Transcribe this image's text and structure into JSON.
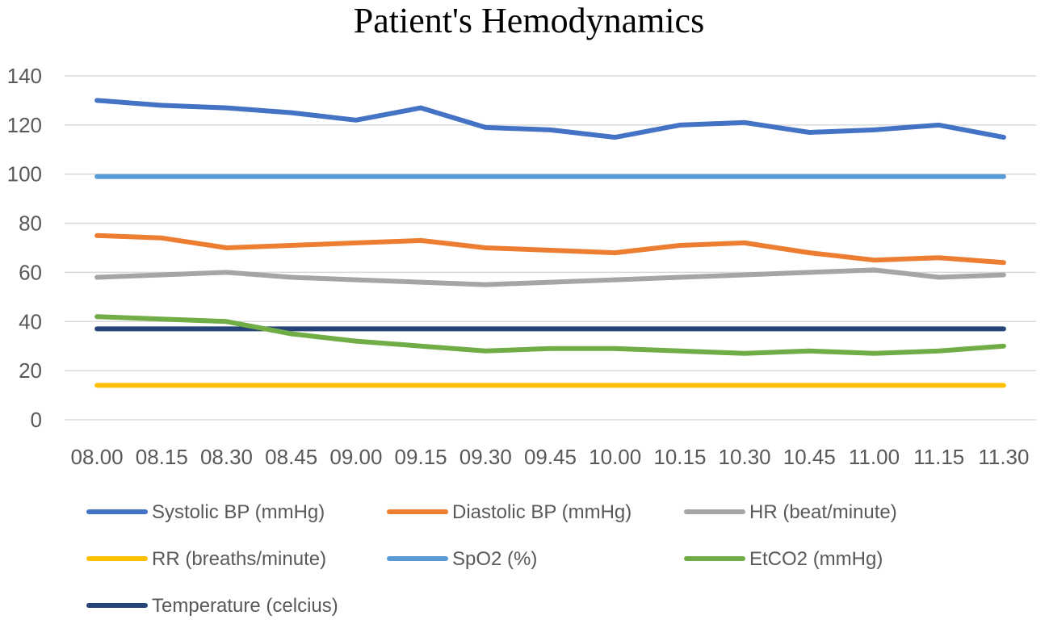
{
  "chart_data": {
    "type": "line",
    "title": "Patient's Hemodynamics",
    "xlabel": "",
    "ylabel": "",
    "ylim": [
      0,
      140
    ],
    "yticks": [
      0,
      20,
      40,
      60,
      80,
      100,
      120,
      140
    ],
    "grid": true,
    "legend_position": "bottom",
    "categories": [
      "08.00",
      "08.15",
      "08.30",
      "08.45",
      "09.00",
      "09.15",
      "09.30",
      "09.45",
      "10.00",
      "10.15",
      "10.30",
      "10.45",
      "11.00",
      "11.15",
      "11.30"
    ],
    "series": [
      {
        "name": "Systolic BP (mmHg)",
        "color": "#4472c4",
        "values": [
          130,
          128,
          127,
          125,
          122,
          127,
          119,
          118,
          115,
          120,
          121,
          117,
          118,
          120,
          115
        ]
      },
      {
        "name": "Diastolic BP (mmHg)",
        "color": "#ed7d31",
        "values": [
          75,
          74,
          70,
          71,
          72,
          73,
          70,
          69,
          68,
          71,
          72,
          68,
          65,
          66,
          64
        ]
      },
      {
        "name": "HR (beat/minute)",
        "color": "#a5a5a5",
        "values": [
          58,
          59,
          60,
          58,
          57,
          56,
          55,
          56,
          57,
          58,
          59,
          60,
          61,
          58,
          59
        ]
      },
      {
        "name": "RR (breaths/minute)",
        "color": "#ffc000",
        "values": [
          14,
          14,
          14,
          14,
          14,
          14,
          14,
          14,
          14,
          14,
          14,
          14,
          14,
          14,
          14
        ]
      },
      {
        "name": "SpO2 (%)",
        "color": "#5b9bd5",
        "values": [
          99,
          99,
          99,
          99,
          99,
          99,
          99,
          99,
          99,
          99,
          99,
          99,
          99,
          99,
          99
        ]
      },
      {
        "name": "EtCO2 (mmHg)",
        "color": "#70ad47",
        "values": [
          42,
          41,
          40,
          35,
          32,
          30,
          28,
          29,
          29,
          28,
          27,
          28,
          27,
          28,
          30
        ]
      },
      {
        "name": "Temperature (celcius)",
        "color": "#264478",
        "values": [
          37,
          37,
          37,
          37,
          37,
          37,
          37,
          37,
          37,
          37,
          37,
          37,
          37,
          37,
          37
        ]
      }
    ]
  }
}
